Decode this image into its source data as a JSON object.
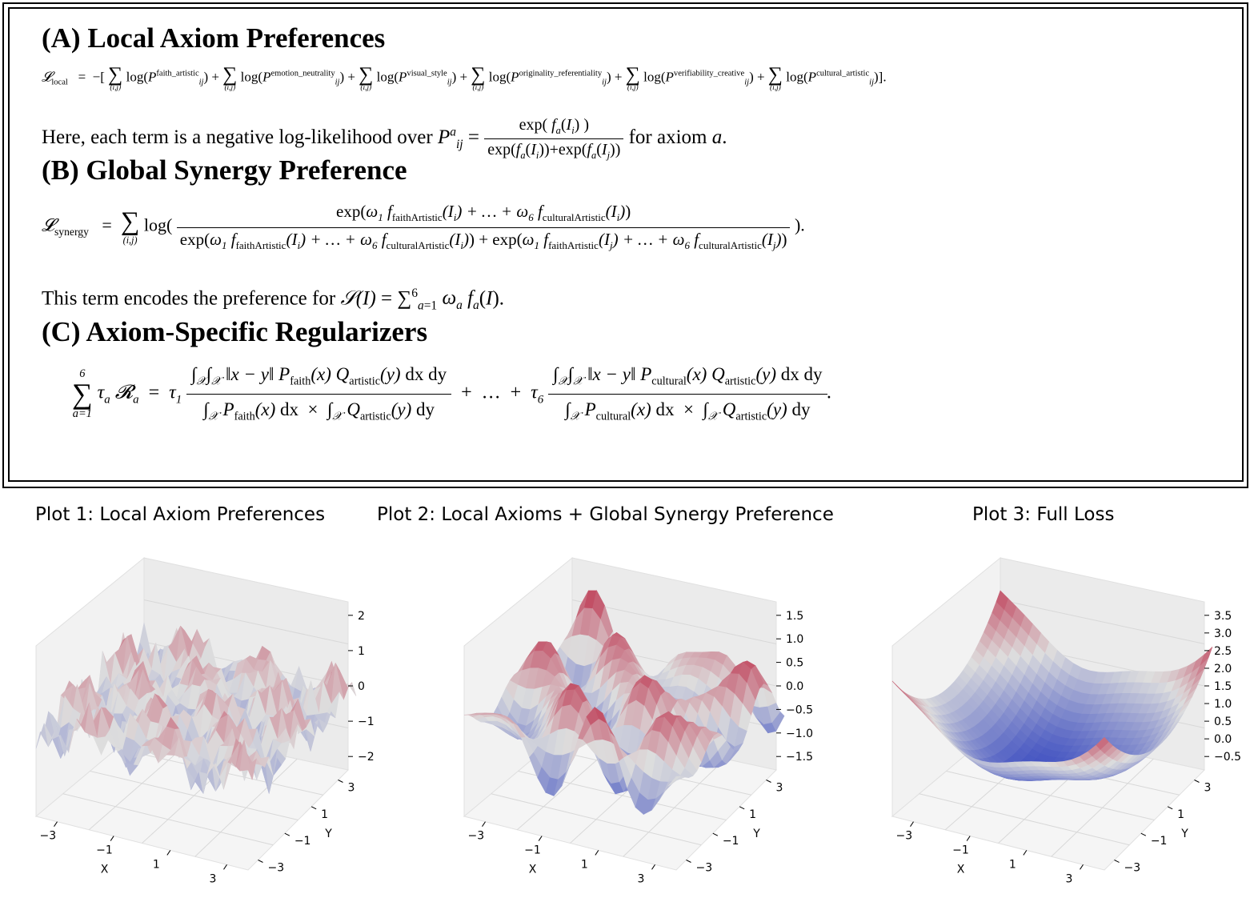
{
  "sections": {
    "a_title": "(A) Local Axiom Preferences",
    "a_sub": "local",
    "a_terms": [
      "faith_artistic",
      "emotion_neutrality",
      "visual_style",
      "originality_referentiality",
      "verifiability_creative",
      "cultural_artistic"
    ],
    "a_text_pre": "Here, each term is a negative log-likelihood over",
    "a_text_post": "for axiom",
    "b_title": "(B) Global Synergy Preference",
    "b_sub": "synergy",
    "b_f1": "faithArtistic",
    "b_f6": "culturalArtistic",
    "b_text": "This term encodes the preference for",
    "c_title": "(C) Axiom-Specific Regularizers",
    "c_faith": "faith",
    "c_cultural": "cultural",
    "c_artistic": "artistic"
  },
  "plots": [
    {
      "title": "Plot 1: Local Axiom Preferences",
      "zticks": [
        "2",
        "1",
        "0",
        "−1",
        "−2"
      ]
    },
    {
      "title": "Plot 2: Local Axioms + Global Synergy Preference",
      "zticks": [
        "1.5",
        "1.0",
        "0.5",
        "0.0",
        "−0.5",
        "−1.0",
        "−1.5"
      ]
    },
    {
      "title": "Plot 3: Full Loss",
      "zticks": [
        "3.5",
        "3.0",
        "2.5",
        "2.0",
        "1.5",
        "1.0",
        "0.5",
        "0.0",
        "−0.5"
      ]
    }
  ],
  "axes": {
    "xticks": [
      "−3",
      "−1",
      "1",
      "3"
    ],
    "yticks": [
      "3",
      "1",
      "−1",
      "−3"
    ],
    "xlabel": "X",
    "ylabel": "Y"
  },
  "colors": {
    "warm": "#c0392b",
    "mid": "#dddddd",
    "cool": "#3a6fd8",
    "deep": "#2b4fa8"
  }
}
